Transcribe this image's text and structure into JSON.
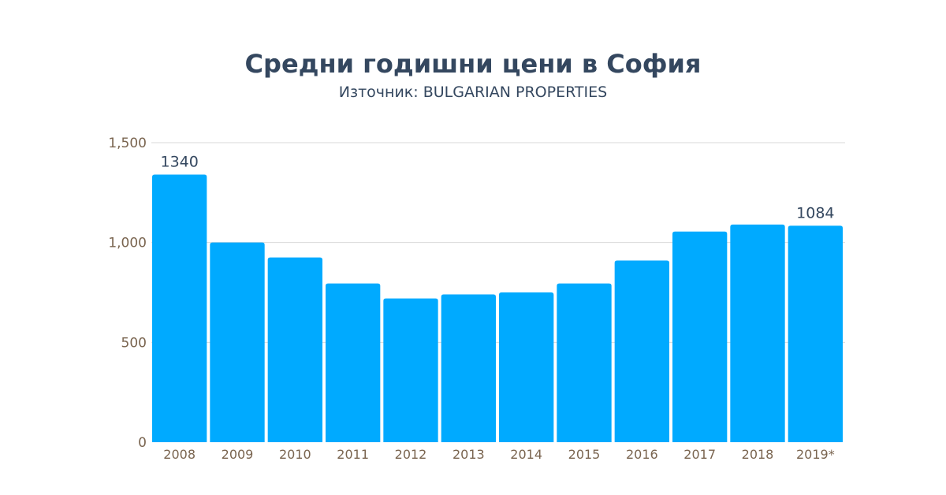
{
  "chart_data": {
    "type": "bar",
    "title": "Средни годишни цени в София",
    "subtitle": "Източник: BULGARIAN PROPERTIES",
    "categories": [
      "2008",
      "2009",
      "2010",
      "2011",
      "2012",
      "2013",
      "2014",
      "2015",
      "2016",
      "2017",
      "2018",
      "2019*"
    ],
    "values": [
      1340,
      1000,
      925,
      795,
      720,
      740,
      750,
      795,
      910,
      1055,
      1090,
      1084
    ],
    "data_labels": {
      "0": "1340",
      "11": "1084"
    },
    "yticks": [
      "0",
      "500",
      "1,000",
      "1,500"
    ],
    "ytick_values": [
      0,
      500,
      1000,
      1500
    ],
    "ylim": [
      0,
      1500
    ],
    "xlabel": "",
    "ylabel": "",
    "grid": true,
    "colors": {
      "bar": "#00aaff",
      "title": "#34475f",
      "tick": "#7a6550",
      "grid": "#d9d9d9"
    }
  }
}
